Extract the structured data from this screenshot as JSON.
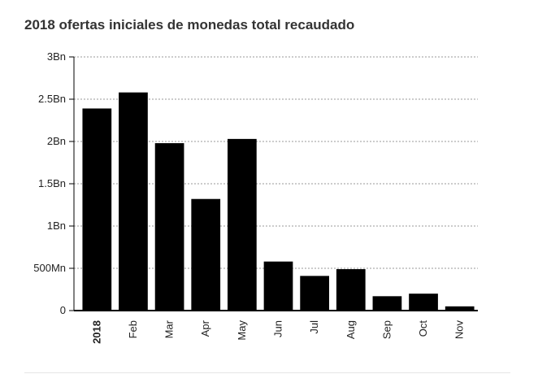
{
  "title": "2018 ofertas iniciales de monedas total recaudado",
  "chart_data": {
    "type": "bar",
    "title": "2018 ofertas iniciales de monedas total recaudado",
    "xlabel": "",
    "ylabel": "",
    "categories": [
      "2018",
      "Feb",
      "Mar",
      "Apr",
      "May",
      "Jun",
      "Jul",
      "Aug",
      "Sep",
      "Oct",
      "Nov"
    ],
    "bold_categories": [
      "2018"
    ],
    "values": [
      2.39,
      2.58,
      1.98,
      1.32,
      2.03,
      0.58,
      0.41,
      0.49,
      0.17,
      0.2,
      0.05
    ],
    "unit": "Bn",
    "ylim": [
      0,
      3
    ],
    "yticks": [
      {
        "value": 0,
        "label": "0"
      },
      {
        "value": 0.5,
        "label": "500Mn"
      },
      {
        "value": 1,
        "label": "1Bn"
      },
      {
        "value": 1.5,
        "label": "1.5Bn"
      },
      {
        "value": 2,
        "label": "2Bn"
      },
      {
        "value": 2.5,
        "label": "2.5Bn"
      },
      {
        "value": 3,
        "label": "3Bn"
      }
    ],
    "grid": true,
    "bar_color": "#000000",
    "grid_color": "#999999",
    "axis_color": "#000000"
  }
}
